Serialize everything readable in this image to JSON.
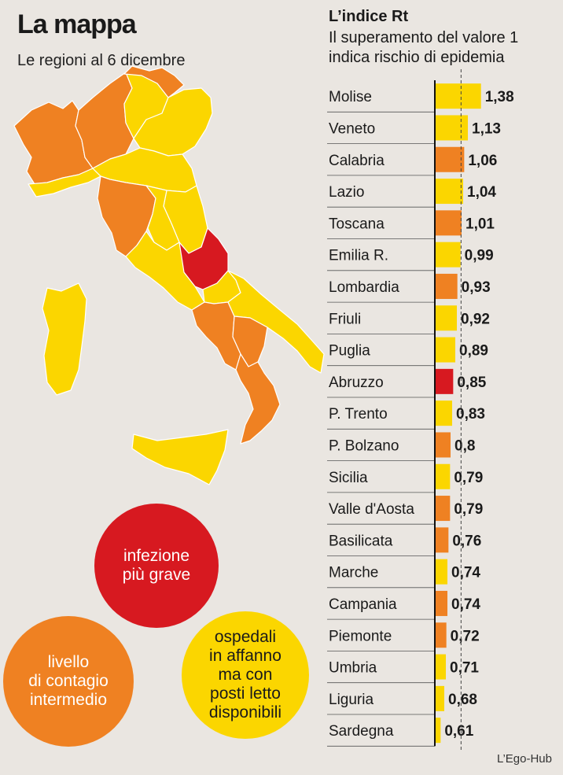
{
  "left": {
    "title": "La mappa",
    "subtitle": "Le regioni al 6 dicembre",
    "legend": {
      "red": [
        "infezione",
        "più grave"
      ],
      "orange": [
        "livello",
        "di contagio",
        "intermedio"
      ],
      "yellow": [
        "ospedali",
        "in affanno",
        "ma con",
        "posti letto",
        "disponibili"
      ]
    }
  },
  "colors": {
    "red": "#d71920",
    "orange": "#ef8122",
    "yellow": "#fbd600",
    "background": "#eae6e1"
  },
  "chart_data": {
    "type": "bar",
    "orientation": "horizontal",
    "title": "L’indice Rt",
    "subtitle_lines": [
      "Il superamento del valore 1",
      "indica rischio di epidemia"
    ],
    "reference_line": 1,
    "categories": [
      "Molise",
      "Veneto",
      "Calabria",
      "Lazio",
      "Toscana",
      "Emilia R.",
      "Lombardia",
      "Friuli",
      "Puglia",
      "Abruzzo",
      "P. Trento",
      "P. Bolzano",
      "Sicilia",
      "Valle d'Aosta",
      "Basilicata",
      "Marche",
      "Campania",
      "Piemonte",
      "Umbria",
      "Liguria",
      "Sardegna"
    ],
    "values": [
      1.38,
      1.13,
      1.06,
      1.04,
      1.01,
      0.99,
      0.93,
      0.92,
      0.89,
      0.85,
      0.83,
      0.8,
      0.79,
      0.79,
      0.76,
      0.74,
      0.74,
      0.72,
      0.71,
      0.68,
      0.61
    ],
    "value_labels": [
      "1,38",
      "1,13",
      "1,06",
      "1,04",
      "1,01",
      "0,99",
      "0,93",
      "0,92",
      "0,89",
      "0,85",
      "0,83",
      "0,8",
      "0,79",
      "0,79",
      "0,76",
      "0,74",
      "0,74",
      "0,72",
      "0,71",
      "0,68",
      "0,61"
    ],
    "bar_colors": [
      "yellow",
      "yellow",
      "orange",
      "yellow",
      "orange",
      "yellow",
      "orange",
      "yellow",
      "yellow",
      "red",
      "yellow",
      "orange",
      "yellow",
      "orange",
      "orange",
      "yellow",
      "orange",
      "orange",
      "yellow",
      "yellow",
      "yellow"
    ]
  },
  "credit": "L’Ego-Hub"
}
